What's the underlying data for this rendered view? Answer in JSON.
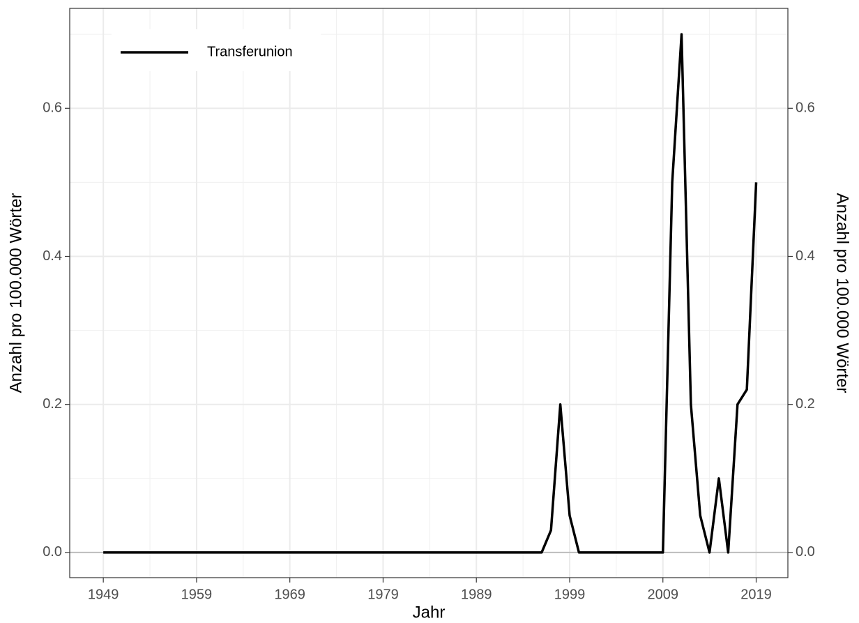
{
  "chart_data": {
    "type": "line",
    "xlabel": "Jahr",
    "ylabel": "Anzahl pro 100.000 Wörter",
    "y2label": "Anzahl pro 100.000 Wörter",
    "x": [
      1949,
      1950,
      1951,
      1952,
      1953,
      1954,
      1955,
      1956,
      1957,
      1958,
      1959,
      1960,
      1961,
      1962,
      1963,
      1964,
      1965,
      1966,
      1967,
      1968,
      1969,
      1970,
      1971,
      1972,
      1973,
      1974,
      1975,
      1976,
      1977,
      1978,
      1979,
      1980,
      1981,
      1982,
      1983,
      1984,
      1985,
      1986,
      1987,
      1988,
      1989,
      1990,
      1991,
      1992,
      1993,
      1994,
      1995,
      1996,
      1997,
      1998,
      1999,
      2000,
      2001,
      2002,
      2003,
      2004,
      2005,
      2006,
      2007,
      2008,
      2009,
      2010,
      2011,
      2012,
      2013,
      2014,
      2015,
      2016,
      2017,
      2018,
      2019
    ],
    "series": [
      {
        "name": "Transferunion",
        "color": "#000000",
        "values": [
          0,
          0,
          0,
          0,
          0,
          0,
          0,
          0,
          0,
          0,
          0,
          0,
          0,
          0,
          0,
          0,
          0,
          0,
          0,
          0,
          0,
          0,
          0,
          0,
          0,
          0,
          0,
          0,
          0,
          0,
          0,
          0,
          0,
          0,
          0,
          0,
          0,
          0,
          0,
          0,
          0,
          0,
          0,
          0,
          0,
          0,
          0,
          0,
          0.03,
          0.2,
          0.05,
          0,
          0,
          0,
          0,
          0,
          0,
          0,
          0,
          0,
          0,
          0.5,
          0.7,
          0.2,
          0.05,
          0,
          0.1,
          0,
          0.2,
          0.22,
          0.5
        ]
      }
    ],
    "xlim": [
      1945.4,
      2022.4
    ],
    "xticks": [
      1949,
      1959,
      1969,
      1979,
      1989,
      1999,
      2009,
      2019
    ],
    "ylim": [
      -0.034,
      0.735
    ],
    "yticks": [
      {
        "value": 0,
        "label": "0.0"
      },
      {
        "value": 0.2,
        "label": "0.2"
      },
      {
        "value": 0.4,
        "label": "0.4"
      },
      {
        "value": 0.6,
        "label": "0.6"
      }
    ],
    "y2lim": [
      -0.034,
      0.735
    ],
    "y2ticks": [
      {
        "value": 0,
        "label": "0.0"
      },
      {
        "value": 0.2,
        "label": "0.2"
      },
      {
        "value": 0.4,
        "label": "0.4"
      },
      {
        "value": 0.6,
        "label": "0.6"
      }
    ],
    "grid": true,
    "legend": "top-left"
  }
}
